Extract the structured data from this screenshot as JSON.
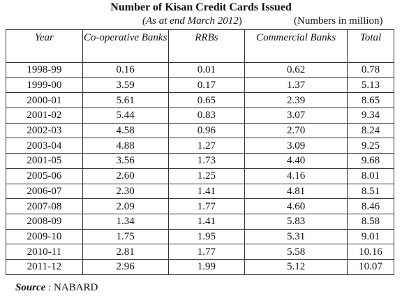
{
  "title": "Number of Kisan Credit Cards Issued",
  "subtitle_italic": "(As at end March 2012",
  "subtitle_close": ")",
  "units": "(Numbers in million)",
  "columns": [
    "Year",
    "Co-operative Banks",
    "RRBs",
    "Commercial Banks",
    "Total"
  ],
  "rows": [
    [
      "1998-99",
      "0.16",
      "0.01",
      "0.62",
      "0.78"
    ],
    [
      "1999-00",
      "3.59",
      "0.17",
      "1.37",
      "5.13"
    ],
    [
      "2000-01",
      "5.61",
      "0.65",
      "2.39",
      "8.65"
    ],
    [
      "2001-02",
      "5.44",
      "0.83",
      "3.07",
      "9.34"
    ],
    [
      "2002-03",
      "4.58",
      "0.96",
      "2.70",
      "8.24"
    ],
    [
      "2003-04",
      "4.88",
      "1.27",
      "3.09",
      "9.25"
    ],
    [
      "2001-05",
      "3.56",
      "1.73",
      "4.40",
      "9.68"
    ],
    [
      "2005-06",
      "2.60",
      "1.25",
      "4.16",
      "8.01"
    ],
    [
      "2006-07",
      "2.30",
      "1.41",
      "4.81",
      "8.51"
    ],
    [
      "2007-08",
      "2.09",
      "1.77",
      "4.60",
      "8.46"
    ],
    [
      "2008-09",
      "1.34",
      "1.41",
      "5.83",
      "8.58"
    ],
    [
      "2009-10",
      "1.75",
      "1.95",
      "5.31",
      "9.01"
    ],
    [
      "2010-11",
      "2.81",
      "1.77",
      "5.58",
      "10.16"
    ],
    [
      "2011-12",
      "2.96",
      "1.99",
      "5.12",
      "10.07"
    ]
  ],
  "source_label": "Source",
  "source_sep": " : ",
  "source_value": "NABARD"
}
